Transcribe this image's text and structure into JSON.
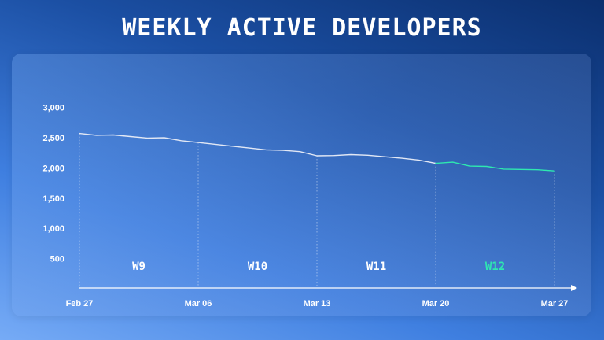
{
  "title": "WEEKLY ACTIVE DEVELOPERS",
  "colors": {
    "line": "#e2e8f5",
    "highlight": "#2ee8b0",
    "week_label": "#ffffff"
  },
  "chart_data": {
    "type": "line",
    "title": "WEEKLY ACTIVE DEVELOPERS",
    "xlabel": "",
    "ylabel": "",
    "ylim": [
      0,
      3000
    ],
    "y_ticks": [
      "500",
      "1,000",
      "1,500",
      "2,000",
      "2,500",
      "3,000"
    ],
    "x_ticks": [
      "Feb 27",
      "Mar 06",
      "Mar 13",
      "Mar 20",
      "Mar 27"
    ],
    "grid": false,
    "series": [
      {
        "name": "",
        "x": [
          "2023-02-27",
          "2023-02-28",
          "2023-03-01",
          "2023-03-02",
          "2023-03-03",
          "2023-03-04",
          "2023-03-05",
          "2023-03-06",
          "2023-03-07",
          "2023-03-08",
          "2023-03-09",
          "2023-03-10",
          "2023-03-11",
          "2023-03-12",
          "2023-03-13",
          "2023-03-14",
          "2023-03-15",
          "2023-03-16",
          "2023-03-17",
          "2023-03-18",
          "2023-03-19",
          "2023-03-20"
        ],
        "values": [
          2570,
          2540,
          2545,
          2520,
          2495,
          2500,
          2450,
          2420,
          2390,
          2360,
          2330,
          2300,
          2290,
          2270,
          2200,
          2205,
          2220,
          2210,
          2185,
          2160,
          2130,
          2075
        ]
      },
      {
        "name": "",
        "highlight": true,
        "x": [
          "2023-03-20",
          "2023-03-21",
          "2023-03-22",
          "2023-03-23",
          "2023-03-24",
          "2023-03-25",
          "2023-03-26",
          "2023-03-27"
        ],
        "values": [
          2075,
          2095,
          2030,
          2025,
          1980,
          1975,
          1970,
          1950
        ]
      }
    ],
    "weeks": [
      {
        "label": "W9",
        "start": "2023-02-27",
        "end": "2023-03-06",
        "highlight": false
      },
      {
        "label": "W10",
        "start": "2023-03-06",
        "end": "2023-03-13",
        "highlight": false
      },
      {
        "label": "W11",
        "start": "2023-03-13",
        "end": "2023-03-20",
        "highlight": false
      },
      {
        "label": "W12",
        "start": "2023-03-20",
        "end": "2023-03-27",
        "highlight": true
      }
    ]
  }
}
